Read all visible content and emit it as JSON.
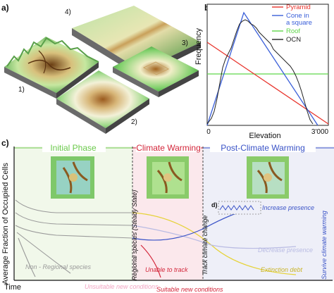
{
  "panel_a": {
    "letter": "a)",
    "surfaces": [
      {
        "label": "1)"
      },
      {
        "label": "2)"
      },
      {
        "label": "3)"
      },
      {
        "label": "4)"
      }
    ]
  },
  "panel_b": {
    "letter": "b)",
    "ylabel": "Frequency",
    "xlabel": "Elevation",
    "x_ticks": [
      "0",
      "3'000"
    ],
    "legend": [
      {
        "name": "Pyramid",
        "color": "#e8342c"
      },
      {
        "name": "Cone in\na square",
        "color": "#3a5fd9"
      },
      {
        "name": "Roof",
        "color": "#5fd64a"
      },
      {
        "name": "OCN",
        "color": "#222222"
      }
    ]
  },
  "panel_c": {
    "letter": "c)",
    "ylabel": "Average Fraction of Occupied Cells",
    "xlabel": "Time",
    "phases": [
      {
        "name": "Initial Phase",
        "color": "#6ac94a"
      },
      {
        "name": "Climate Warming",
        "color": "#d3263a"
      },
      {
        "name": "Post-Climate Warming",
        "color": "#3a53c7"
      }
    ],
    "vertical_labels": [
      "Regional species (Steady State)",
      "Track climate change",
      "Survive climate warming"
    ],
    "labels": {
      "non_regional": "Non - Regional species",
      "unable": "Unable to track",
      "increase": "Increase presence",
      "decrease": "Decrease presence",
      "extinction": "Extinction debt",
      "inset_d": "d)",
      "unsuitable": "Unsuitable new conditions",
      "suitable": "Suitable new conditions"
    }
  },
  "chart_data": {
    "type": "line",
    "title": "",
    "xlabel": "Elevation",
    "ylabel": "Frequency",
    "x_ticks": [
      "0",
      "3'000"
    ],
    "series": [
      {
        "name": "Pyramid",
        "shape": "decreasing linear"
      },
      {
        "name": "Cone in a square",
        "shape": "triangular peak"
      },
      {
        "name": "Roof",
        "shape": "constant"
      },
      {
        "name": "OCN",
        "shape": "irregular peak"
      }
    ]
  }
}
